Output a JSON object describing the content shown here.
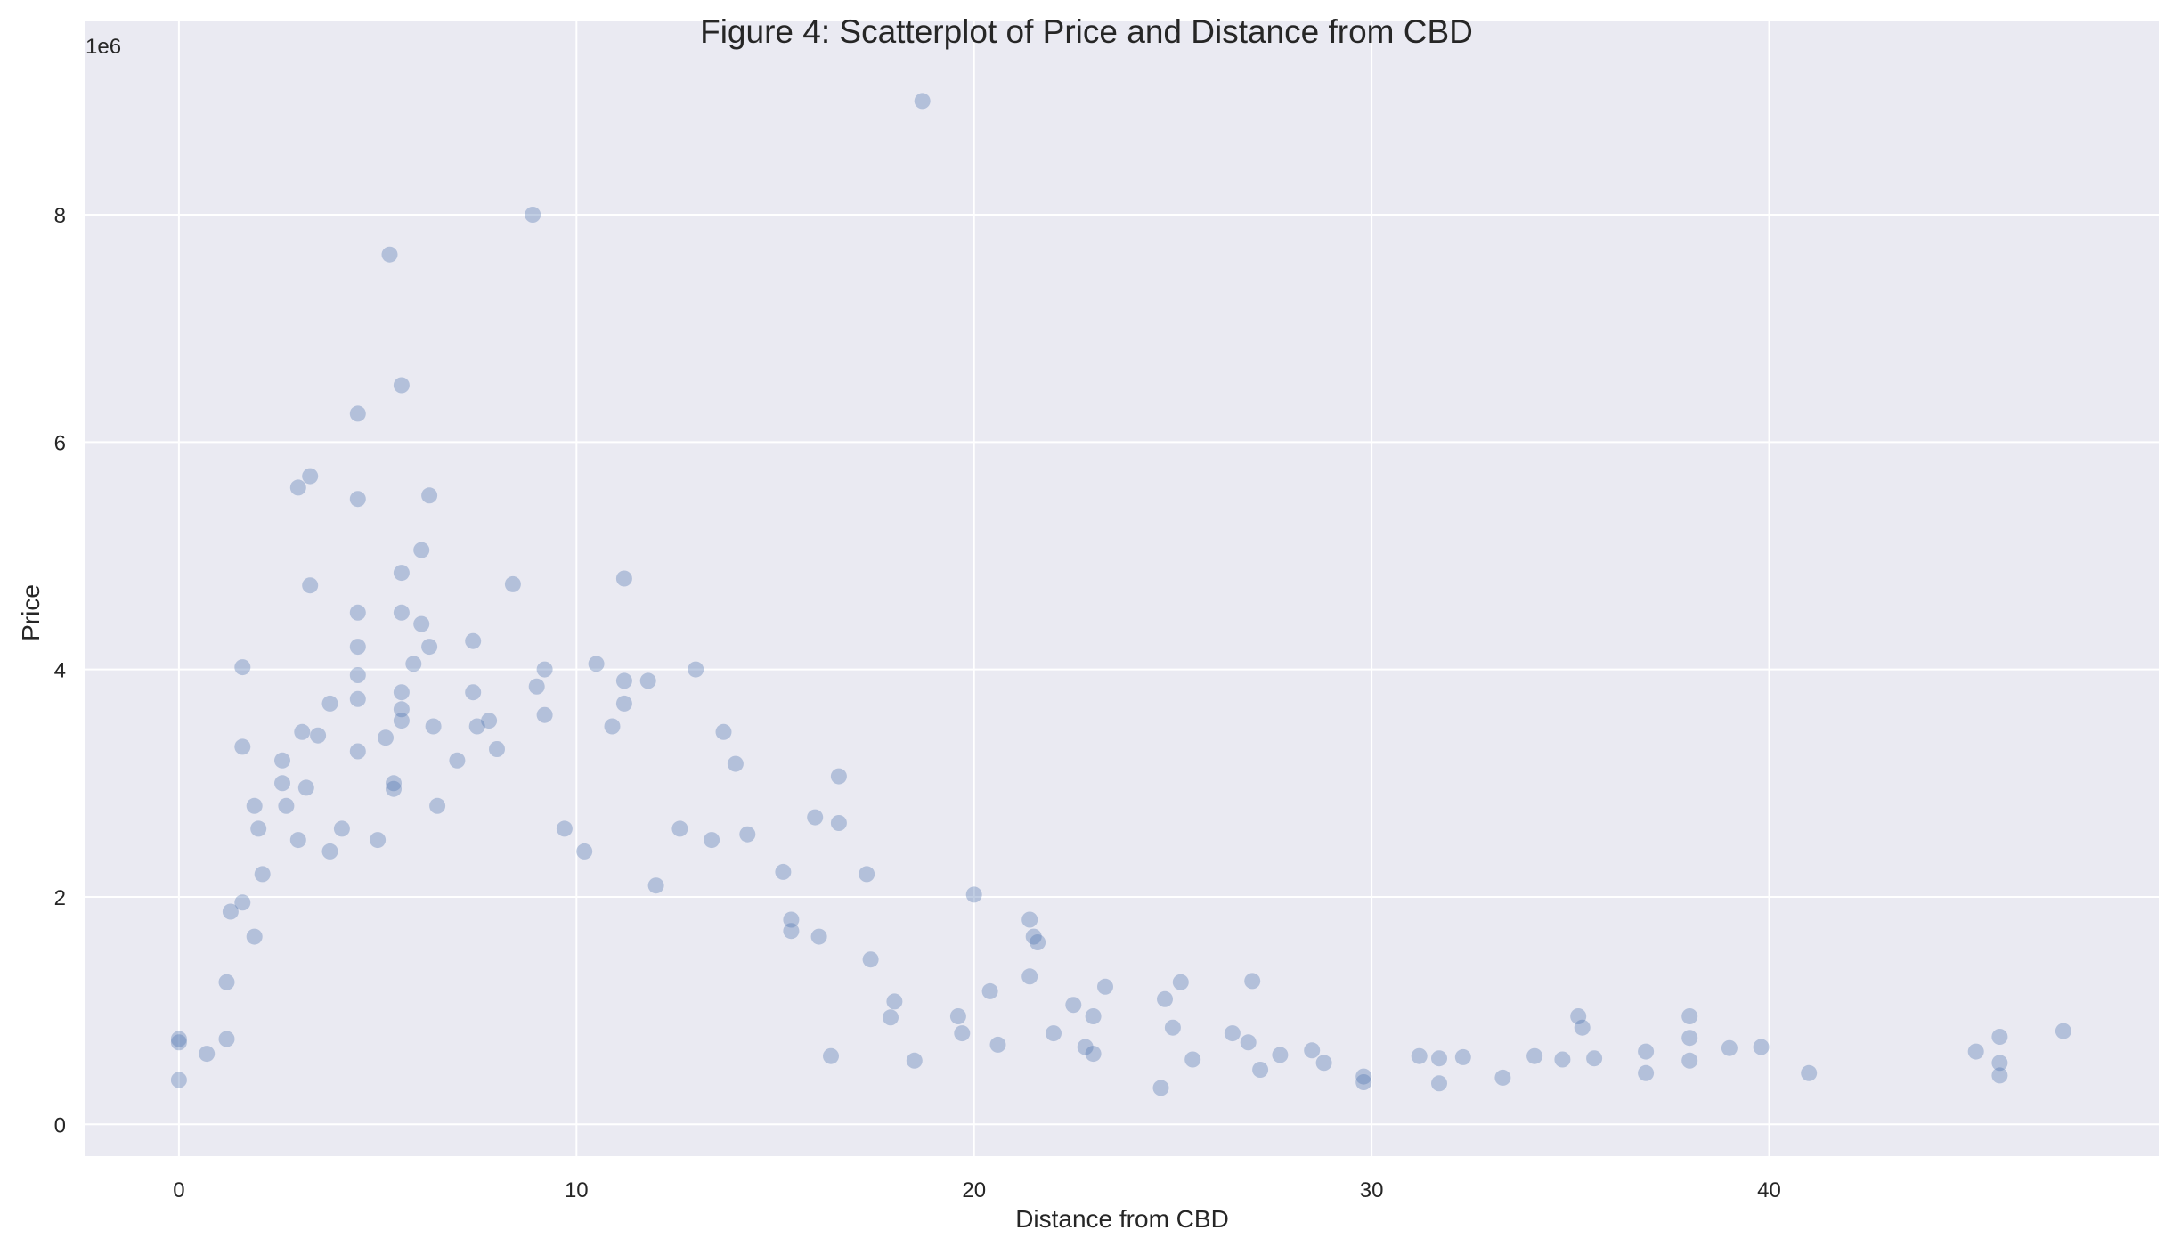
{
  "chart_data": {
    "type": "scatter",
    "title": "Figure 4: Scatterplot of Price and Distance from CBD",
    "xlabel": "Distance from CBD",
    "ylabel": "Price",
    "y_offset_label": "1e6",
    "xlim": [
      -2.35,
      49.8
    ],
    "ylim": [
      -280000,
      9700000
    ],
    "xticks": [
      0,
      10,
      20,
      30,
      40
    ],
    "xtick_labels": [
      "0",
      "10",
      "20",
      "30",
      "40"
    ],
    "yticks": [
      0,
      2000000,
      4000000,
      6000000,
      8000000
    ],
    "ytick_labels": [
      "0",
      "2",
      "4",
      "6",
      "8"
    ],
    "grid": true,
    "colors": {
      "background": "#eaeaf2",
      "grid": "#ffffff",
      "marker": "#4c72b0"
    },
    "marker_alpha": 0.35,
    "series": [
      {
        "points": [
          [
            0,
            390000
          ],
          [
            0,
            720000
          ],
          [
            0,
            750000
          ],
          [
            0.7,
            620000
          ],
          [
            1.2,
            1250000
          ],
          [
            1.3,
            1870000
          ],
          [
            1.6,
            1950000
          ],
          [
            1.6,
            3320000
          ],
          [
            1.6,
            4020000
          ],
          [
            1.9,
            2800000
          ],
          [
            2.0,
            2600000
          ],
          [
            2.1,
            2200000
          ],
          [
            2.6,
            3000000
          ],
          [
            2.6,
            3200000
          ],
          [
            3.0,
            2500000
          ],
          [
            3.0,
            5600000
          ],
          [
            3.1,
            3450000
          ],
          [
            3.2,
            2960000
          ],
          [
            3.3,
            4740000
          ],
          [
            3.3,
            5700000
          ],
          [
            3.5,
            3420000
          ],
          [
            3.8,
            3700000
          ],
          [
            4.1,
            2600000
          ],
          [
            4.5,
            3280000
          ],
          [
            4.5,
            3740000
          ],
          [
            4.5,
            3950000
          ],
          [
            4.5,
            4200000
          ],
          [
            4.5,
            4500000
          ],
          [
            4.5,
            5500000
          ],
          [
            4.5,
            6250000
          ],
          [
            5.0,
            2500000
          ],
          [
            5.2,
            3400000
          ],
          [
            5.3,
            7650000
          ],
          [
            5.4,
            2950000
          ],
          [
            5.6,
            3550000
          ],
          [
            5.6,
            3650000
          ],
          [
            5.6,
            3800000
          ],
          [
            5.6,
            4500000
          ],
          [
            5.6,
            4850000
          ],
          [
            5.6,
            6500000
          ],
          [
            5.9,
            4050000
          ],
          [
            6.1,
            5050000
          ],
          [
            6.1,
            4400000
          ],
          [
            6.3,
            5530000
          ],
          [
            6.3,
            4200000
          ],
          [
            6.4,
            3500000
          ],
          [
            7.0,
            3200000
          ],
          [
            7.4,
            4250000
          ],
          [
            7.4,
            3800000
          ],
          [
            7.5,
            3500000
          ],
          [
            7.8,
            3550000
          ],
          [
            8.4,
            4750000
          ],
          [
            8.9,
            8000000
          ],
          [
            9.0,
            3850000
          ],
          [
            9.2,
            4000000
          ],
          [
            9.2,
            3600000
          ],
          [
            10.5,
            4050000
          ],
          [
            11.2,
            4800000
          ],
          [
            11.2,
            3700000
          ],
          [
            11.2,
            3900000
          ],
          [
            11.8,
            3900000
          ],
          [
            13.0,
            4000000
          ],
          [
            13.7,
            3450000
          ],
          [
            14.3,
            2550000
          ],
          [
            15.2,
            2220000
          ],
          [
            16.0,
            2700000
          ],
          [
            16.6,
            3060000
          ],
          [
            16.6,
            2650000
          ],
          [
            17.3,
            2200000
          ],
          [
            18.7,
            9000000
          ],
          [
            20.0,
            2020000
          ],
          [
            21.4,
            1800000
          ],
          [
            21.4,
            1300000
          ],
          [
            22.5,
            1050000
          ],
          [
            23.0,
            950000
          ],
          [
            24.8,
            1100000
          ],
          [
            25.2,
            1250000
          ],
          [
            27.0,
            1260000
          ],
          [
            20.4,
            1170000
          ],
          [
            19.6,
            950000
          ],
          [
            19.7,
            800000
          ],
          [
            20.6,
            700000
          ],
          [
            21.5,
            1650000
          ],
          [
            21.6,
            1600000
          ],
          [
            22.0,
            800000
          ],
          [
            23.3,
            1210000
          ],
          [
            24.7,
            320000
          ],
          [
            25.5,
            570000
          ],
          [
            26.5,
            800000
          ],
          [
            27.2,
            480000
          ],
          [
            27.7,
            610000
          ],
          [
            28.5,
            650000
          ],
          [
            28.8,
            540000
          ],
          [
            29.8,
            420000
          ],
          [
            29.8,
            370000
          ],
          [
            31.2,
            600000
          ],
          [
            31.7,
            580000
          ],
          [
            31.7,
            360000
          ],
          [
            32.3,
            590000
          ],
          [
            33.3,
            410000
          ],
          [
            34.1,
            600000
          ],
          [
            34.8,
            570000
          ],
          [
            35.2,
            950000
          ],
          [
            35.3,
            850000
          ],
          [
            35.6,
            580000
          ],
          [
            36.9,
            640000
          ],
          [
            36.9,
            450000
          ],
          [
            38.0,
            950000
          ],
          [
            38.0,
            760000
          ],
          [
            38.0,
            560000
          ],
          [
            39.0,
            670000
          ],
          [
            39.8,
            680000
          ],
          [
            41.0,
            450000
          ],
          [
            45.2,
            640000
          ],
          [
            45.8,
            770000
          ],
          [
            45.8,
            540000
          ],
          [
            45.8,
            430000
          ],
          [
            47.4,
            820000
          ],
          [
            17.9,
            940000
          ],
          [
            18.5,
            560000
          ],
          [
            16.4,
            600000
          ],
          [
            15.4,
            1800000
          ],
          [
            12.6,
            2600000
          ],
          [
            14.0,
            3170000
          ],
          [
            10.9,
            3500000
          ],
          [
            8.0,
            3300000
          ],
          [
            6.5,
            2800000
          ],
          [
            5.4,
            3000000
          ],
          [
            2.7,
            2800000
          ],
          [
            1.9,
            1650000
          ],
          [
            1.2,
            750000
          ],
          [
            3.8,
            2400000
          ],
          [
            9.7,
            2600000
          ],
          [
            10.2,
            2400000
          ],
          [
            13.4,
            2500000
          ],
          [
            12.0,
            2100000
          ],
          [
            16.1,
            1650000
          ],
          [
            15.4,
            1700000
          ],
          [
            17.4,
            1450000
          ],
          [
            18.0,
            1080000
          ],
          [
            22.8,
            680000
          ],
          [
            23.0,
            620000
          ],
          [
            25.0,
            850000
          ],
          [
            26.9,
            720000
          ]
        ]
      }
    ]
  }
}
